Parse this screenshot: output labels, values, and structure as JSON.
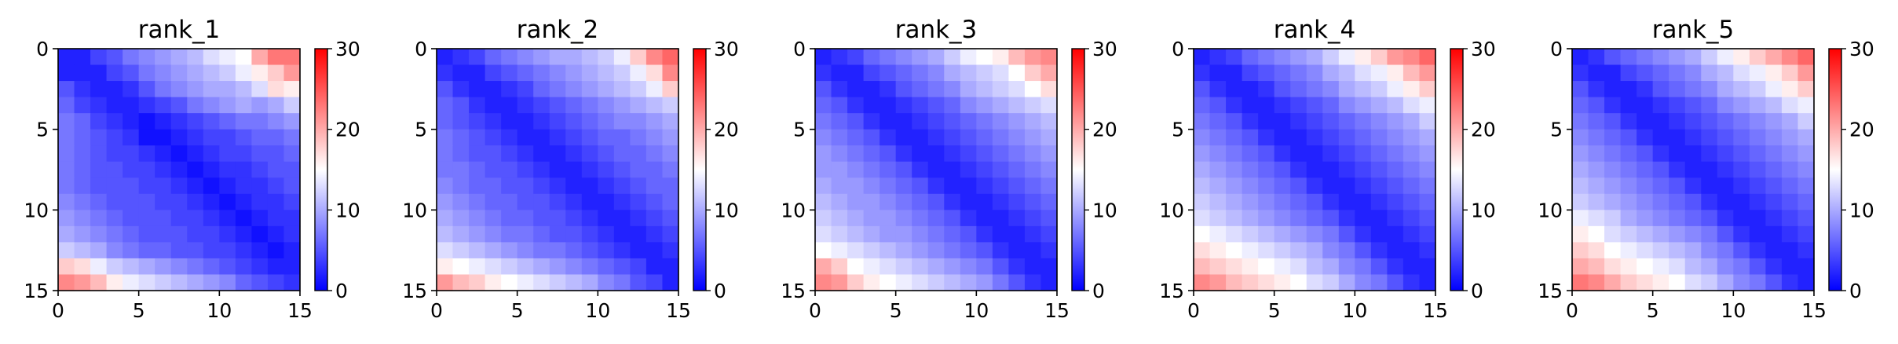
{
  "figure": {
    "panel_count": 5,
    "colormap": {
      "name": "bwr",
      "low": "#0000ff",
      "mid": "#ffffff",
      "high": "#ff0000"
    }
  },
  "chart_data": [
    {
      "type": "heatmap",
      "title": "rank_1",
      "xlim": [
        0,
        15
      ],
      "ylim": [
        0,
        15
      ],
      "xticks": [
        "0",
        "5",
        "10",
        "15"
      ],
      "yticks": [
        "0",
        "5",
        "10",
        "15"
      ],
      "colorbar": {
        "vmin": 0,
        "vmax": 30,
        "ticks": [
          "0",
          "10",
          "20",
          "30"
        ]
      },
      "y_inverted": true,
      "values": [
        [
          2,
          2,
          4,
          5,
          7,
          8,
          9,
          10,
          11,
          13,
          14,
          15,
          20,
          23,
          23
        ],
        [
          2,
          2,
          2,
          4,
          5,
          7,
          8,
          9,
          10,
          11,
          12,
          14,
          16,
          18,
          21
        ],
        [
          5,
          3,
          2,
          2,
          3,
          5,
          7,
          8,
          9,
          10,
          10,
          11,
          13,
          17,
          16
        ],
        [
          6,
          4,
          3,
          2,
          2,
          3,
          4,
          5,
          7,
          8,
          9,
          10,
          9,
          10,
          12
        ],
        [
          7,
          6,
          4,
          3,
          2,
          1,
          2,
          3,
          4,
          5,
          6,
          7,
          7,
          8,
          9
        ],
        [
          7,
          6,
          5,
          4,
          3,
          1,
          1,
          2,
          3,
          4,
          4,
          5,
          6,
          6,
          7
        ],
        [
          7,
          6,
          5,
          4,
          4,
          3,
          2,
          1,
          2,
          3,
          4,
          4,
          5,
          5,
          6
        ],
        [
          7,
          6,
          5,
          5,
          4,
          4,
          3,
          2,
          1,
          2,
          3,
          3,
          4,
          5,
          5
        ],
        [
          7,
          6,
          5,
          5,
          5,
          4,
          4,
          3,
          2,
          1,
          2,
          3,
          3,
          4,
          5
        ],
        [
          8,
          7,
          6,
          5,
          5,
          5,
          4,
          4,
          3,
          2,
          1,
          2,
          3,
          3,
          4
        ],
        [
          9,
          8,
          7,
          6,
          5,
          5,
          5,
          4,
          4,
          3,
          2,
          1,
          2,
          3,
          3
        ],
        [
          10,
          9,
          8,
          7,
          6,
          5,
          5,
          5,
          4,
          4,
          3,
          2,
          1,
          2,
          3
        ],
        [
          12,
          11,
          10,
          8,
          7,
          6,
          6,
          5,
          5,
          4,
          4,
          3,
          2,
          1,
          2
        ],
        [
          18,
          17,
          14,
          12,
          11,
          10,
          9,
          8,
          7,
          6,
          5,
          4,
          3,
          2,
          2
        ],
        [
          22,
          21,
          19,
          16,
          14,
          13,
          12,
          11,
          10,
          9,
          8,
          6,
          5,
          4,
          3
        ]
      ]
    },
    {
      "type": "heatmap",
      "title": "rank_2",
      "xlim": [
        0,
        15
      ],
      "ylim": [
        0,
        15
      ],
      "xticks": [
        "0",
        "5",
        "10",
        "15"
      ],
      "yticks": [
        "0",
        "5",
        "10",
        "15"
      ],
      "colorbar": {
        "vmin": 0,
        "vmax": 30,
        "ticks": [
          "0",
          "10",
          "20",
          "30"
        ]
      },
      "y_inverted": true,
      "values": [
        [
          2,
          3,
          4,
          6,
          7,
          8,
          9,
          10,
          10,
          11,
          12,
          14,
          18,
          22,
          24
        ],
        [
          3,
          2,
          2,
          4,
          5,
          6,
          7,
          8,
          9,
          10,
          11,
          12,
          14,
          17,
          22
        ],
        [
          5,
          3,
          2,
          2,
          3,
          4,
          6,
          7,
          8,
          9,
          10,
          11,
          12,
          14,
          18
        ],
        [
          6,
          5,
          3,
          2,
          2,
          3,
          4,
          5,
          6,
          7,
          8,
          9,
          10,
          11,
          12
        ],
        [
          6,
          5,
          4,
          3,
          2,
          2,
          3,
          4,
          5,
          6,
          7,
          8,
          8,
          9,
          10
        ],
        [
          7,
          6,
          5,
          4,
          3,
          2,
          2,
          3,
          4,
          5,
          6,
          6,
          7,
          8,
          9
        ],
        [
          7,
          6,
          5,
          5,
          4,
          3,
          2,
          2,
          3,
          4,
          5,
          6,
          6,
          7,
          8
        ],
        [
          7,
          7,
          6,
          5,
          5,
          4,
          3,
          2,
          2,
          3,
          4,
          5,
          6,
          6,
          7
        ],
        [
          8,
          7,
          6,
          6,
          5,
          5,
          4,
          3,
          2,
          2,
          3,
          4,
          5,
          6,
          6
        ],
        [
          9,
          8,
          7,
          6,
          6,
          5,
          5,
          4,
          3,
          2,
          2,
          3,
          4,
          5,
          6
        ],
        [
          10,
          9,
          8,
          7,
          6,
          6,
          5,
          5,
          4,
          3,
          2,
          2,
          3,
          4,
          5
        ],
        [
          11,
          10,
          9,
          8,
          7,
          7,
          6,
          5,
          5,
          4,
          3,
          2,
          2,
          3,
          4
        ],
        [
          13,
          12,
          11,
          10,
          9,
          8,
          7,
          7,
          6,
          5,
          4,
          3,
          2,
          2,
          3
        ],
        [
          16,
          15,
          14,
          13,
          12,
          11,
          10,
          9,
          8,
          7,
          6,
          5,
          4,
          2,
          2
        ],
        [
          21,
          19,
          18,
          16,
          15,
          14,
          13,
          12,
          11,
          10,
          8,
          7,
          5,
          4,
          2
        ]
      ]
    },
    {
      "type": "heatmap",
      "title": "rank_3",
      "xlim": [
        0,
        15
      ],
      "ylim": [
        0,
        15
      ],
      "xticks": [
        "0",
        "5",
        "10",
        "15"
      ],
      "yticks": [
        "0",
        "5",
        "10",
        "15"
      ],
      "colorbar": {
        "vmin": 0,
        "vmax": 30,
        "ticks": [
          "0",
          "10",
          "20",
          "30"
        ]
      },
      "y_inverted": true,
      "values": [
        [
          2,
          3,
          4,
          6,
          7,
          8,
          9,
          10,
          12,
          14,
          15,
          16,
          19,
          21,
          22
        ],
        [
          3,
          2,
          2,
          4,
          5,
          6,
          7,
          8,
          10,
          11,
          12,
          13,
          15,
          18,
          20
        ],
        [
          5,
          3,
          2,
          2,
          3,
          5,
          6,
          7,
          8,
          10,
          11,
          12,
          13,
          15,
          17
        ],
        [
          6,
          5,
          3,
          2,
          2,
          3,
          4,
          5,
          6,
          8,
          9,
          10,
          11,
          12,
          13
        ],
        [
          7,
          6,
          5,
          3,
          2,
          2,
          3,
          4,
          5,
          6,
          7,
          8,
          9,
          10,
          11
        ],
        [
          8,
          7,
          6,
          5,
          3,
          2,
          2,
          3,
          4,
          5,
          6,
          7,
          8,
          9,
          10
        ],
        [
          9,
          8,
          7,
          6,
          5,
          3,
          2,
          2,
          3,
          4,
          5,
          6,
          7,
          8,
          9
        ],
        [
          9,
          9,
          8,
          7,
          6,
          5,
          3,
          2,
          2,
          3,
          4,
          5,
          6,
          7,
          8
        ],
        [
          10,
          9,
          9,
          8,
          7,
          6,
          5,
          3,
          2,
          2,
          3,
          4,
          5,
          6,
          7
        ],
        [
          11,
          10,
          9,
          9,
          8,
          7,
          6,
          5,
          3,
          2,
          2,
          3,
          4,
          5,
          6
        ],
        [
          12,
          11,
          10,
          9,
          9,
          8,
          7,
          6,
          5,
          3,
          2,
          2,
          3,
          4,
          5
        ],
        [
          13,
          12,
          11,
          10,
          9,
          9,
          8,
          7,
          6,
          5,
          3,
          2,
          2,
          3,
          4
        ],
        [
          15,
          14,
          13,
          12,
          11,
          10,
          9,
          8,
          7,
          6,
          5,
          3,
          2,
          2,
          3
        ],
        [
          20,
          18,
          15,
          14,
          13,
          12,
          11,
          10,
          9,
          8,
          7,
          5,
          3,
          2,
          2
        ],
        [
          22,
          21,
          18,
          16,
          15,
          14,
          13,
          12,
          11,
          10,
          9,
          7,
          5,
          3,
          2
        ]
      ]
    },
    {
      "type": "heatmap",
      "title": "rank_4",
      "xlim": [
        0,
        15
      ],
      "ylim": [
        0,
        15
      ],
      "xticks": [
        "0",
        "5",
        "10",
        "15"
      ],
      "yticks": [
        "0",
        "5",
        "10",
        "15"
      ],
      "colorbar": {
        "vmin": 0,
        "vmax": 30,
        "ticks": [
          "0",
          "10",
          "20",
          "30"
        ]
      },
      "y_inverted": true,
      "values": [
        [
          2,
          3,
          4,
          6,
          7,
          8,
          9,
          10,
          12,
          14,
          16,
          18,
          21,
          22,
          24
        ],
        [
          3,
          2,
          2,
          4,
          5,
          6,
          7,
          8,
          10,
          11,
          13,
          14,
          16,
          19,
          21
        ],
        [
          5,
          3,
          2,
          2,
          3,
          5,
          6,
          7,
          8,
          10,
          11,
          12,
          14,
          16,
          18
        ],
        [
          6,
          5,
          3,
          2,
          2,
          3,
          4,
          5,
          6,
          8,
          9,
          10,
          11,
          13,
          14
        ],
        [
          7,
          6,
          5,
          3,
          2,
          2,
          3,
          4,
          5,
          6,
          7,
          8,
          9,
          10,
          12
        ],
        [
          8,
          7,
          6,
          5,
          3,
          2,
          2,
          3,
          4,
          5,
          6,
          7,
          8,
          9,
          10
        ],
        [
          9,
          8,
          7,
          6,
          5,
          3,
          2,
          2,
          3,
          4,
          5,
          6,
          7,
          8,
          9
        ],
        [
          10,
          9,
          8,
          7,
          6,
          5,
          3,
          2,
          2,
          3,
          4,
          5,
          6,
          7,
          8
        ],
        [
          11,
          10,
          9,
          8,
          7,
          6,
          5,
          3,
          2,
          2,
          3,
          4,
          5,
          6,
          7
        ],
        [
          12,
          11,
          10,
          9,
          8,
          7,
          6,
          5,
          3,
          2,
          2,
          3,
          4,
          5,
          6
        ],
        [
          13,
          12,
          11,
          10,
          9,
          8,
          7,
          6,
          5,
          3,
          2,
          2,
          3,
          4,
          5
        ],
        [
          15,
          14,
          13,
          12,
          11,
          10,
          9,
          8,
          7,
          5,
          3,
          2,
          2,
          3,
          4
        ],
        [
          17,
          16,
          15,
          14,
          13,
          12,
          11,
          10,
          8,
          7,
          5,
          3,
          2,
          2,
          3
        ],
        [
          19,
          18,
          17,
          16,
          15,
          14,
          13,
          11,
          10,
          8,
          7,
          5,
          3,
          2,
          2
        ],
        [
          22,
          21,
          19,
          18,
          17,
          16,
          15,
          13,
          12,
          10,
          8,
          7,
          5,
          3,
          2
        ]
      ]
    },
    {
      "type": "heatmap",
      "title": "rank_5",
      "xlim": [
        0,
        15
      ],
      "ylim": [
        0,
        15
      ],
      "xticks": [
        "0",
        "5",
        "10",
        "15"
      ],
      "yticks": [
        "0",
        "5",
        "10",
        "15"
      ],
      "colorbar": {
        "vmin": 0,
        "vmax": 30,
        "ticks": [
          "0",
          "10",
          "20",
          "30"
        ]
      },
      "y_inverted": true,
      "values": [
        [
          2,
          3,
          5,
          6,
          7,
          8,
          9,
          10,
          12,
          14,
          16,
          18,
          20,
          22,
          24
        ],
        [
          3,
          2,
          2,
          4,
          5,
          6,
          7,
          8,
          10,
          11,
          13,
          14,
          16,
          18,
          21
        ],
        [
          5,
          3,
          2,
          2,
          3,
          5,
          6,
          7,
          8,
          10,
          11,
          12,
          14,
          16,
          18
        ],
        [
          6,
          5,
          3,
          2,
          2,
          3,
          4,
          5,
          6,
          8,
          9,
          10,
          11,
          13,
          14
        ],
        [
          7,
          6,
          5,
          3,
          2,
          2,
          3,
          4,
          5,
          6,
          7,
          8,
          9,
          10,
          12
        ],
        [
          8,
          7,
          6,
          5,
          3,
          2,
          2,
          3,
          4,
          5,
          6,
          7,
          8,
          9,
          10
        ],
        [
          9,
          8,
          7,
          6,
          5,
          3,
          2,
          2,
          3,
          4,
          5,
          6,
          7,
          8,
          9
        ],
        [
          10,
          9,
          8,
          7,
          6,
          5,
          3,
          2,
          2,
          3,
          4,
          5,
          6,
          7,
          8
        ],
        [
          11,
          10,
          9,
          8,
          7,
          6,
          5,
          3,
          2,
          2,
          3,
          4,
          5,
          6,
          7
        ],
        [
          12,
          11,
          10,
          9,
          8,
          7,
          6,
          5,
          3,
          2,
          2,
          3,
          4,
          5,
          6
        ],
        [
          14,
          13,
          12,
          10,
          9,
          8,
          7,
          6,
          5,
          3,
          2,
          2,
          3,
          4,
          5
        ],
        [
          16,
          15,
          13,
          12,
          11,
          10,
          9,
          8,
          7,
          5,
          3,
          2,
          2,
          3,
          4
        ],
        [
          18,
          17,
          15,
          14,
          13,
          12,
          11,
          10,
          8,
          7,
          5,
          3,
          2,
          2,
          3
        ],
        [
          20,
          19,
          17,
          16,
          15,
          14,
          13,
          11,
          10,
          8,
          7,
          5,
          3,
          2,
          2
        ],
        [
          23,
          22,
          20,
          18,
          17,
          16,
          15,
          13,
          12,
          10,
          8,
          7,
          5,
          3,
          2
        ]
      ]
    }
  ]
}
